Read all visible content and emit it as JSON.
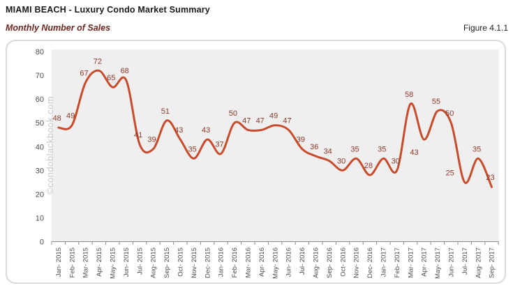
{
  "header": {
    "title": "MIAMI BEACH - Luxury Condo Market Summary",
    "subtitle": "Monthly Number of Sales",
    "figure_label": "Figure 4.1.1"
  },
  "watermark": "©condoblackbook.com",
  "chart_data": {
    "type": "line",
    "title": "Monthly Number of Sales",
    "x": [
      "Jan- 2015",
      "Feb- 2015",
      "Mar- 2015",
      "Apr- 2015",
      "May- 2015",
      "Jun- 2015",
      "Jul- 2015",
      "Aug- 2015",
      "Sep- 2015",
      "Oct- 2015",
      "Nov- 2015",
      "Dec- 2015",
      "Jan- 2016",
      "Feb- 2016",
      "Mar- 2016",
      "Apr- 2016",
      "May- 2016",
      "Jun- 2016",
      "Jul- 2016",
      "Aug- 2016",
      "Sep- 2016",
      "Oct- 2016",
      "Nov- 2016",
      "Dec- 2016",
      "Jan- 2017",
      "Feb- 2017",
      "Mar- 2017",
      "Apr- 2017",
      "May- 2017",
      "Jun- 2017",
      "Jul- 2017",
      "Aug- 2017",
      "Sep- 2017"
    ],
    "values": [
      48,
      49,
      67,
      72,
      65,
      68,
      41,
      39,
      51,
      43,
      35,
      43,
      37,
      50,
      47,
      47,
      49,
      47,
      39,
      36,
      34,
      30,
      35,
      28,
      35,
      30,
      58,
      43,
      55,
      50,
      25,
      35,
      23
    ],
    "xlabel": "",
    "ylabel": "",
    "ylim": [
      0,
      80
    ],
    "y_ticks": [
      0,
      10,
      20,
      30,
      40,
      50,
      60,
      70,
      80
    ],
    "grid": false,
    "legend": "none",
    "smooth": true,
    "data_labels": true,
    "line_color": "#C74C2C",
    "label_color": "#8B3A2B",
    "plot_bg": "#EFEFEF",
    "axis_color": "#8C8C8C",
    "axis_text_color": "#4D4D4D"
  }
}
